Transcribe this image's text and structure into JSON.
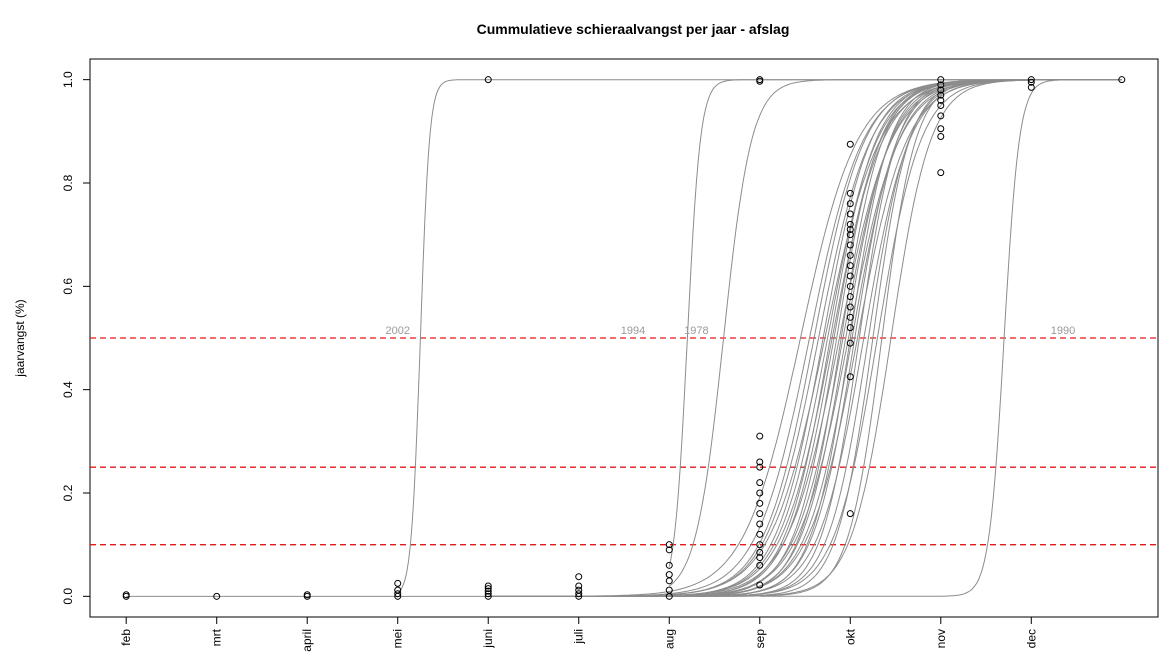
{
  "chart_data": {
    "type": "line",
    "title": "Cummulatieve schieraalvangst per jaar - afslag",
    "xlabel": "",
    "ylabel": "jaarvangst (%)",
    "x_ticks": [
      "feb",
      "mrt",
      "april",
      "mei",
      "juni",
      "juli",
      "aug",
      "sep",
      "okt",
      "nov",
      "dec"
    ],
    "x_tick_positions": [
      2,
      3,
      4,
      5,
      6,
      7,
      8,
      9,
      10,
      11,
      12
    ],
    "xlim": [
      1.6,
      13.4
    ],
    "ylim": [
      -0.04,
      1.04
    ],
    "y_ticks": [
      "0.0",
      "0.2",
      "0.4",
      "0.6",
      "0.8",
      "1.0"
    ],
    "y_tick_values": [
      0,
      0.2,
      0.4,
      0.6,
      0.8,
      1.0
    ],
    "hlines": [
      0.1,
      0.25,
      0.5
    ],
    "hline_color": "#e31a1c",
    "curve_color": "#8c8c8c",
    "point_color": "#000000",
    "labeled_series": [
      {
        "name": "2002",
        "x_start": 5.0,
        "midpoint": 5.25,
        "steepness": 20
      },
      {
        "name": "1994",
        "x_start": 8.0,
        "midpoint": 8.2,
        "steepness": 14
      },
      {
        "name": "1978",
        "x_start": 8.0,
        "midpoint": 8.6,
        "steepness": 6.5
      },
      {
        "name": "1990",
        "x_start": 9.0,
        "midpoint": 11.7,
        "steepness": 12
      }
    ],
    "label_positions": [
      {
        "text": "2002",
        "x": 5.0,
        "y": 0.5
      },
      {
        "text": "1994",
        "x": 7.6,
        "y": 0.5
      },
      {
        "text": "1978",
        "x": 8.3,
        "y": 0.5
      },
      {
        "text": "1990",
        "x": 12.35,
        "y": 0.5
      }
    ],
    "bundle": {
      "x_start": 6.0,
      "midpoints": [
        9.45,
        9.55,
        9.6,
        9.65,
        9.7,
        9.72,
        9.75,
        9.78,
        9.8,
        9.82,
        9.85,
        9.88,
        9.9,
        9.92,
        9.95,
        9.98,
        10.0,
        10.02,
        10.05,
        10.08,
        10.1,
        10.15,
        10.2,
        10.25,
        10.3,
        10.35,
        10.45
      ],
      "steepness": [
        3.2,
        3.4,
        3.6,
        3.5,
        3.8,
        3.3,
        3.7,
        4.0,
        3.6,
        3.9,
        4.2,
        3.5,
        4.4,
        3.8,
        4.1,
        3.6,
        4.6,
        3.9,
        4.3,
        3.7,
        4.8,
        4.0,
        4.5,
        5.0,
        4.2,
        5.4,
        4.6
      ]
    },
    "points": [
      {
        "x": 2,
        "y": 0.0
      },
      {
        "x": 2,
        "y": 0.003
      },
      {
        "x": 3,
        "y": 0.0
      },
      {
        "x": 4,
        "y": 0.0
      },
      {
        "x": 4,
        "y": 0.003
      },
      {
        "x": 5,
        "y": 0.0
      },
      {
        "x": 5,
        "y": 0.005
      },
      {
        "x": 5,
        "y": 0.012
      },
      {
        "x": 5,
        "y": 0.025
      },
      {
        "x": 6,
        "y": 0.0
      },
      {
        "x": 6,
        "y": 0.005
      },
      {
        "x": 6,
        "y": 0.01
      },
      {
        "x": 6,
        "y": 0.015
      },
      {
        "x": 6,
        "y": 0.02
      },
      {
        "x": 6,
        "y": 1.0
      },
      {
        "x": 7,
        "y": 0.0
      },
      {
        "x": 7,
        "y": 0.005
      },
      {
        "x": 7,
        "y": 0.012
      },
      {
        "x": 7,
        "y": 0.02
      },
      {
        "x": 7,
        "y": 0.038
      },
      {
        "x": 8,
        "y": 0.0
      },
      {
        "x": 8,
        "y": 0.012
      },
      {
        "x": 8,
        "y": 0.03
      },
      {
        "x": 8,
        "y": 0.042
      },
      {
        "x": 8,
        "y": 0.06
      },
      {
        "x": 8,
        "y": 0.09
      },
      {
        "x": 8,
        "y": 0.1
      },
      {
        "x": 9,
        "y": 0.022
      },
      {
        "x": 9,
        "y": 0.06
      },
      {
        "x": 9,
        "y": 0.075
      },
      {
        "x": 9,
        "y": 0.085
      },
      {
        "x": 9,
        "y": 0.1
      },
      {
        "x": 9,
        "y": 0.12
      },
      {
        "x": 9,
        "y": 0.14
      },
      {
        "x": 9,
        "y": 0.16
      },
      {
        "x": 9,
        "y": 0.18
      },
      {
        "x": 9,
        "y": 0.2
      },
      {
        "x": 9,
        "y": 0.22
      },
      {
        "x": 9,
        "y": 0.25
      },
      {
        "x": 9,
        "y": 0.26
      },
      {
        "x": 9,
        "y": 0.31
      },
      {
        "x": 9,
        "y": 1.0
      },
      {
        "x": 9,
        "y": 0.997
      },
      {
        "x": 10,
        "y": 0.16
      },
      {
        "x": 10,
        "y": 0.425
      },
      {
        "x": 10,
        "y": 0.49
      },
      {
        "x": 10,
        "y": 0.52
      },
      {
        "x": 10,
        "y": 0.54
      },
      {
        "x": 10,
        "y": 0.56
      },
      {
        "x": 10,
        "y": 0.58
      },
      {
        "x": 10,
        "y": 0.6
      },
      {
        "x": 10,
        "y": 0.62
      },
      {
        "x": 10,
        "y": 0.64
      },
      {
        "x": 10,
        "y": 0.66
      },
      {
        "x": 10,
        "y": 0.68
      },
      {
        "x": 10,
        "y": 0.7
      },
      {
        "x": 10,
        "y": 0.71
      },
      {
        "x": 10,
        "y": 0.72
      },
      {
        "x": 10,
        "y": 0.74
      },
      {
        "x": 10,
        "y": 0.76
      },
      {
        "x": 10,
        "y": 0.78
      },
      {
        "x": 10,
        "y": 0.875
      },
      {
        "x": 11,
        "y": 0.82
      },
      {
        "x": 11,
        "y": 0.89
      },
      {
        "x": 11,
        "y": 0.905
      },
      {
        "x": 11,
        "y": 0.93
      },
      {
        "x": 11,
        "y": 0.95
      },
      {
        "x": 11,
        "y": 0.96
      },
      {
        "x": 11,
        "y": 0.97
      },
      {
        "x": 11,
        "y": 0.98
      },
      {
        "x": 11,
        "y": 0.99
      },
      {
        "x": 11,
        "y": 1.0
      },
      {
        "x": 12,
        "y": 0.985
      },
      {
        "x": 12,
        "y": 0.995
      },
      {
        "x": 12,
        "y": 1.0
      },
      {
        "x": 13,
        "y": 1.0
      }
    ]
  }
}
